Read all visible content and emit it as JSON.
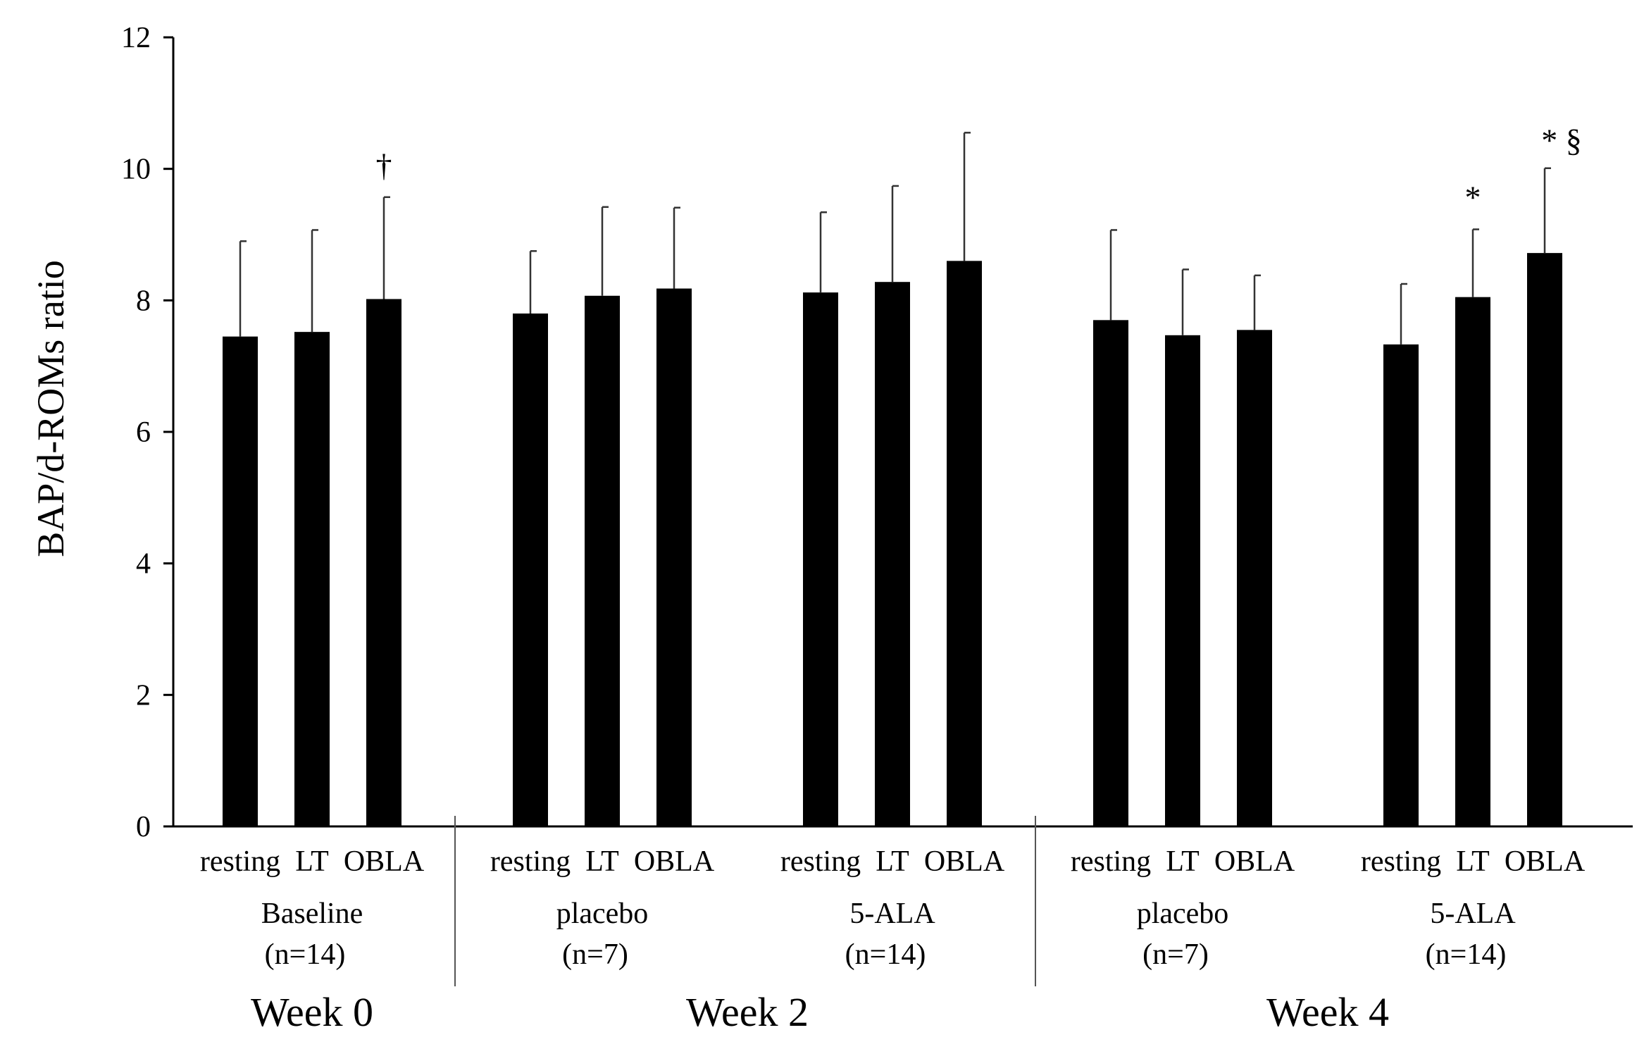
{
  "chart_data": {
    "type": "bar",
    "ylabel": "BAP/d-ROMs ratio",
    "xlabel": "",
    "ylim": [
      0,
      12
    ],
    "yticks": [
      0,
      2,
      4,
      6,
      8,
      10,
      12
    ],
    "grid": false,
    "bar_color": "#000000",
    "weeks": [
      {
        "label": "Week 0",
        "groups": [
          {
            "name": "Baseline",
            "n": "(n=14)",
            "bars": [
              {
                "label": "resting",
                "value": 7.45,
                "error": 1.45,
                "sig": ""
              },
              {
                "label": "LT",
                "value": 7.52,
                "error": 1.55,
                "sig": ""
              },
              {
                "label": "OBLA",
                "value": 8.02,
                "error": 1.55,
                "sig": "†"
              }
            ]
          }
        ]
      },
      {
        "label": "Week 2",
        "groups": [
          {
            "name": "placebo",
            "n": "(n=7)",
            "bars": [
              {
                "label": "resting",
                "value": 7.8,
                "error": 0.95,
                "sig": ""
              },
              {
                "label": "LT",
                "value": 8.07,
                "error": 1.35,
                "sig": ""
              },
              {
                "label": "OBLA",
                "value": 8.18,
                "error": 1.23,
                "sig": ""
              }
            ]
          },
          {
            "name": "5-ALA",
            "n": "(n=14)",
            "bars": [
              {
                "label": "resting",
                "value": 8.12,
                "error": 1.22,
                "sig": ""
              },
              {
                "label": "LT",
                "value": 8.28,
                "error": 1.46,
                "sig": ""
              },
              {
                "label": "OBLA",
                "value": 8.6,
                "error": 1.95,
                "sig": ""
              }
            ]
          }
        ]
      },
      {
        "label": "Week 4",
        "groups": [
          {
            "name": "placebo",
            "n": "(n=7)",
            "bars": [
              {
                "label": "resting",
                "value": 7.7,
                "error": 1.37,
                "sig": ""
              },
              {
                "label": "LT",
                "value": 7.47,
                "error": 1.0,
                "sig": ""
              },
              {
                "label": "OBLA",
                "value": 7.55,
                "error": 0.83,
                "sig": ""
              }
            ]
          },
          {
            "name": "5-ALA",
            "n": "(n=14)",
            "bars": [
              {
                "label": "resting",
                "value": 7.33,
                "error": 0.92,
                "sig": ""
              },
              {
                "label": "LT",
                "value": 8.05,
                "error": 1.03,
                "sig": "*"
              },
              {
                "label": "OBLA",
                "value": 8.72,
                "error": 1.29,
                "sig": "* §"
              }
            ]
          }
        ]
      }
    ]
  }
}
